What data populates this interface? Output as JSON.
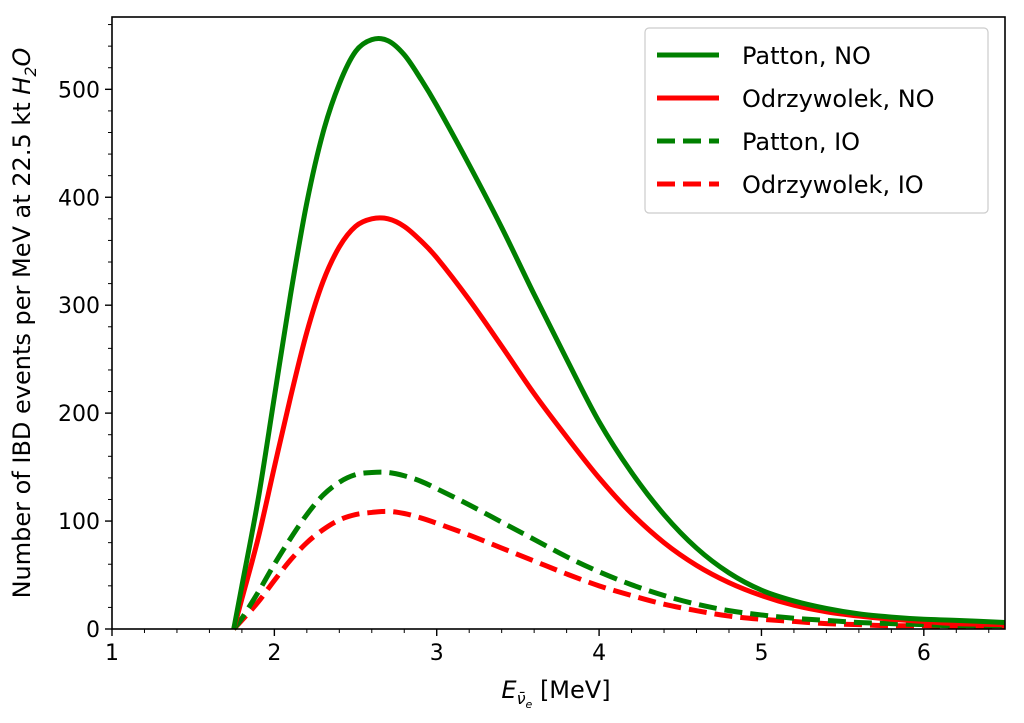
{
  "chart_data": {
    "type": "line",
    "title": "",
    "xlabel": {
      "prefix": "E",
      "sub": "ν̄",
      "subsub": "e",
      "suffix": " [MeV]"
    },
    "ylabel": {
      "prefix": "Number of IBD events per MeV at 22.5 kt ",
      "H": "H",
      "sub": "2",
      "O": "O"
    },
    "xlim": [
      1,
      6.5
    ],
    "ylim": [
      0,
      567
    ],
    "xticks": [
      1,
      2,
      3,
      4,
      5,
      6
    ],
    "yticks": [
      0,
      100,
      200,
      300,
      400,
      500
    ],
    "grid": false,
    "legend_position": "top-right",
    "x": [
      1.75,
      1.8,
      1.9,
      2.0,
      2.1,
      2.2,
      2.3,
      2.4,
      2.5,
      2.6,
      2.7,
      2.8,
      2.9,
      3.0,
      3.2,
      3.4,
      3.6,
      3.8,
      4.0,
      4.2,
      4.4,
      4.6,
      4.8,
      5.0,
      5.2,
      5.4,
      5.6,
      5.8,
      6.0,
      6.2,
      6.5
    ],
    "series": [
      {
        "name": "Patton, NO",
        "color": "#008000",
        "dash": "solid",
        "values": [
          0,
          40,
          120,
          215,
          310,
          395,
          460,
          505,
          535,
          546,
          545,
          532,
          510,
          485,
          430,
          372,
          310,
          250,
          192,
          145,
          106,
          75,
          52,
          36,
          26,
          19,
          14,
          11,
          9,
          8,
          6
        ]
      },
      {
        "name": "Odrzywolek, NO",
        "color": "#ff0000",
        "dash": "solid",
        "values": [
          0,
          28,
          84,
          150,
          215,
          275,
          322,
          354,
          373,
          380,
          380,
          373,
          360,
          344,
          305,
          262,
          218,
          178,
          140,
          107,
          80,
          59,
          43,
          31,
          22,
          16,
          12,
          9,
          7,
          5,
          4
        ]
      },
      {
        "name": "Patton, IO",
        "color": "#008000",
        "dash": "dashed",
        "values": [
          0,
          10,
          34,
          60,
          84,
          106,
          124,
          136,
          143,
          145,
          145,
          142,
          137,
          130,
          115,
          99,
          83,
          67,
          53,
          41,
          31,
          23,
          17,
          13,
          10,
          8,
          6,
          5,
          4,
          3,
          3
        ]
      },
      {
        "name": "Odrzywolek, IO",
        "color": "#ff0000",
        "dash": "dashed",
        "values": [
          0,
          8,
          25,
          45,
          64,
          80,
          92,
          101,
          106,
          108,
          109,
          107,
          103,
          98,
          87,
          75,
          63,
          51,
          40,
          31,
          23,
          17,
          12,
          9,
          7,
          5,
          4,
          3,
          3,
          2,
          2
        ]
      }
    ]
  }
}
